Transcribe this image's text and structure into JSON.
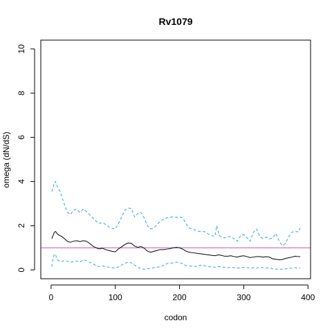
{
  "chart_data": {
    "type": "line",
    "title": "Rv1079",
    "xlabel": "codon",
    "ylabel": "omega (dN/dS)",
    "xlim": [
      -16,
      404
    ],
    "ylim": [
      -0.4,
      10.4
    ],
    "x_ticks": [
      0,
      100,
      200,
      300,
      400
    ],
    "y_ticks": [
      0,
      2,
      4,
      6,
      8,
      10
    ],
    "grid": false,
    "legend": "none",
    "colors": {
      "omega": "#000000",
      "ci": "#29a3e0",
      "reference": "#cc55aa"
    },
    "reference_line": {
      "y": 1
    },
    "series": [
      {
        "key": "omega",
        "style": "solid",
        "x": [
          1,
          3,
          5,
          7,
          10,
          14,
          18,
          22,
          26,
          30,
          35,
          40,
          45,
          50,
          55,
          60,
          65,
          70,
          75,
          80,
          85,
          90,
          95,
          100,
          105,
          110,
          115,
          120,
          125,
          130,
          135,
          140,
          145,
          150,
          155,
          160,
          165,
          170,
          175,
          180,
          185,
          190,
          195,
          200,
          205,
          210,
          215,
          220,
          225,
          230,
          235,
          240,
          245,
          250,
          255,
          260,
          265,
          270,
          275,
          280,
          285,
          290,
          295,
          300,
          305,
          310,
          315,
          320,
          325,
          330,
          335,
          340,
          345,
          350,
          355,
          360,
          365,
          370,
          375,
          380,
          385,
          388
        ],
        "y": [
          1.42,
          1.55,
          1.7,
          1.74,
          1.62,
          1.55,
          1.48,
          1.38,
          1.28,
          1.25,
          1.3,
          1.32,
          1.28,
          1.32,
          1.3,
          1.2,
          1.08,
          1.0,
          0.95,
          0.98,
          0.92,
          0.88,
          0.84,
          0.82,
          0.95,
          1.05,
          1.15,
          1.22,
          1.2,
          1.08,
          1.02,
          1.06,
          0.98,
          0.85,
          0.8,
          0.84,
          0.88,
          0.92,
          0.92,
          0.94,
          0.96,
          1.0,
          1.02,
          1.0,
          0.94,
          0.85,
          0.8,
          0.78,
          0.76,
          0.74,
          0.72,
          0.7,
          0.68,
          0.66,
          0.64,
          0.68,
          0.66,
          0.62,
          0.62,
          0.64,
          0.6,
          0.58,
          0.62,
          0.64,
          0.6,
          0.56,
          0.58,
          0.6,
          0.6,
          0.58,
          0.6,
          0.58,
          0.5,
          0.48,
          0.46,
          0.47,
          0.52,
          0.55,
          0.58,
          0.62,
          0.6,
          0.6
        ]
      },
      {
        "key": "upper",
        "style": "dashed",
        "x": [
          1,
          3,
          5,
          7,
          10,
          14,
          18,
          22,
          26,
          30,
          35,
          40,
          45,
          50,
          55,
          60,
          65,
          70,
          75,
          80,
          85,
          90,
          95,
          100,
          105,
          110,
          115,
          120,
          125,
          130,
          135,
          140,
          145,
          150,
          155,
          160,
          165,
          170,
          175,
          180,
          185,
          190,
          195,
          200,
          205,
          210,
          215,
          220,
          225,
          230,
          235,
          240,
          245,
          250,
          255,
          258,
          262,
          265,
          270,
          275,
          280,
          285,
          290,
          295,
          300,
          305,
          310,
          315,
          320,
          325,
          330,
          335,
          340,
          345,
          350,
          355,
          360,
          365,
          370,
          375,
          380,
          385,
          388
        ],
        "y": [
          3.55,
          3.7,
          3.95,
          4.0,
          3.75,
          3.55,
          3.2,
          2.85,
          2.6,
          2.5,
          2.7,
          2.75,
          2.6,
          2.75,
          2.65,
          2.5,
          2.35,
          2.2,
          2.1,
          2.15,
          2.05,
          1.95,
          1.88,
          1.85,
          2.1,
          2.4,
          2.7,
          2.8,
          2.78,
          2.4,
          2.55,
          2.6,
          2.35,
          2.0,
          1.85,
          1.9,
          2.05,
          2.2,
          2.3,
          2.35,
          2.38,
          2.4,
          2.38,
          2.4,
          2.35,
          2.1,
          1.9,
          1.85,
          1.8,
          1.75,
          1.75,
          1.72,
          1.62,
          1.55,
          1.52,
          2.0,
          1.55,
          1.5,
          1.45,
          1.48,
          1.52,
          1.4,
          1.3,
          1.55,
          1.6,
          1.45,
          1.3,
          1.7,
          1.85,
          1.5,
          1.42,
          1.48,
          1.4,
          1.45,
          1.65,
          1.3,
          1.1,
          1.2,
          1.5,
          1.7,
          1.75,
          1.72,
          1.9
        ]
      },
      {
        "key": "lower",
        "style": "dashed",
        "x": [
          1,
          3,
          5,
          7,
          10,
          14,
          18,
          22,
          26,
          30,
          35,
          40,
          45,
          50,
          55,
          60,
          65,
          70,
          75,
          80,
          85,
          90,
          95,
          100,
          105,
          110,
          115,
          120,
          125,
          130,
          135,
          140,
          145,
          150,
          155,
          160,
          165,
          170,
          175,
          180,
          185,
          190,
          195,
          200,
          205,
          210,
          215,
          220,
          225,
          230,
          235,
          240,
          245,
          250,
          255,
          260,
          265,
          270,
          275,
          280,
          285,
          290,
          295,
          300,
          305,
          310,
          315,
          320,
          325,
          330,
          335,
          340,
          345,
          350,
          355,
          360,
          365,
          370,
          375,
          380,
          385,
          388
        ],
        "y": [
          0.15,
          0.5,
          0.72,
          0.68,
          0.45,
          0.38,
          0.4,
          0.42,
          0.38,
          0.35,
          0.38,
          0.4,
          0.35,
          0.45,
          0.42,
          0.35,
          0.28,
          0.2,
          0.15,
          0.18,
          0.15,
          0.12,
          0.1,
          0.08,
          0.14,
          0.22,
          0.3,
          0.35,
          0.32,
          0.22,
          0.12,
          0.05,
          0.03,
          0.05,
          0.08,
          0.1,
          0.12,
          0.15,
          0.2,
          0.28,
          0.3,
          0.32,
          0.35,
          0.32,
          0.28,
          0.2,
          0.18,
          0.17,
          0.16,
          0.2,
          0.22,
          0.18,
          0.15,
          0.14,
          0.12,
          0.15,
          0.13,
          0.12,
          0.1,
          0.12,
          0.1,
          0.08,
          0.1,
          0.12,
          0.1,
          0.08,
          0.1,
          0.08,
          0.12,
          0.1,
          0.08,
          0.1,
          0.05,
          0.04,
          0.03,
          0.03,
          0.05,
          0.07,
          0.08,
          0.1,
          0.08,
          0.08
        ]
      }
    ]
  }
}
